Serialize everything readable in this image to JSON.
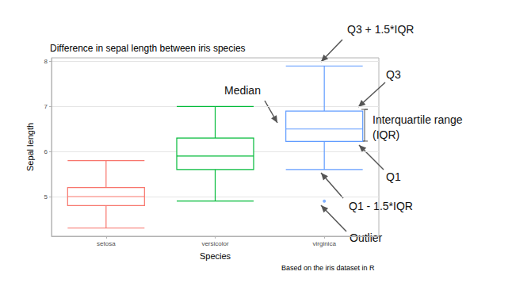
{
  "chart_data": {
    "type": "boxplot",
    "title": "Difference in sepal length between iris species",
    "x_label": "Species",
    "y_label": "Sepal length",
    "caption": "Based on the iris dataset in R",
    "categories": [
      "setosa",
      "versicolor",
      "virginica"
    ],
    "colors": [
      "#F8766D",
      "#00BA38",
      "#619CFF"
    ],
    "values": [
      [
        4.3,
        4.8,
        5.0,
        5.2,
        5.8
      ],
      [
        4.9,
        5.6,
        5.9,
        6.3,
        7.0
      ],
      [
        5.6,
        6.225,
        6.5,
        6.9,
        7.9
      ]
    ],
    "outliers": [
      [],
      [],
      [
        4.9
      ]
    ],
    "ylim": [
      4.12,
      8.08
    ],
    "yticks": [
      5,
      6,
      7,
      8
    ],
    "grid": true,
    "annotations": [
      "Q3 + 1.5*IQR",
      "Q3",
      "Median",
      "Interquartile range\n(IQR)",
      "Q1",
      "Q1 - 1.5*IQR",
      "Outlier"
    ]
  }
}
